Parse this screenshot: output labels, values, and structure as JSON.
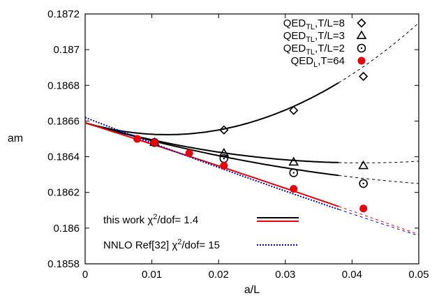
{
  "chart_data": {
    "type": "scatter",
    "xlabel": "a/L",
    "ylabel": "am",
    "xlim": [
      0,
      0.05
    ],
    "ylim": [
      0.1858,
      0.1872
    ],
    "x_ticks": [
      "0",
      "0.01",
      "0.02",
      "0.03",
      "0.04",
      "0.05"
    ],
    "y_ticks": [
      "0.1858",
      "0.186",
      "0.1862",
      "0.1864",
      "0.1866",
      "0.1868",
      "0.187",
      "0.1872"
    ],
    "grid": false,
    "legend_position": "top-right",
    "series": [
      {
        "name": "QED_TL,T/L=8",
        "label_main": "QED",
        "label_sub": "TL",
        "label_rest": ",T/L=8",
        "marker": "diamond",
        "color": "#000000",
        "x": [
          0.0104,
          0.0208,
          0.03125,
          0.0417
        ],
        "y": [
          0.18648,
          0.18655,
          0.18666,
          0.18685
        ]
      },
      {
        "name": "QED_TL,T/L=3",
        "label_main": "QED",
        "label_sub": "TL",
        "label_rest": ",T/L=3",
        "marker": "triangle",
        "color": "#000000",
        "x": [
          0.0104,
          0.0208,
          0.03125,
          0.0417
        ],
        "y": [
          0.18648,
          0.18642,
          0.18637,
          0.18635
        ]
      },
      {
        "name": "QED_TL,T/L=2",
        "label_main": "QED",
        "label_sub": "TL",
        "label_rest": ",T/L=2",
        "marker": "circle-dot",
        "color": "#000000",
        "x": [
          0.0104,
          0.0208,
          0.03125,
          0.0417
        ],
        "y": [
          0.18648,
          0.18639,
          0.18631,
          0.18625
        ]
      },
      {
        "name": "QED_L,T=64",
        "label_main": "QED",
        "label_sub": "L",
        "label_rest": ",T=64",
        "marker": "filled-circle",
        "color": "#e8000b",
        "x": [
          0.0078,
          0.0104,
          0.0156,
          0.0208,
          0.03125,
          0.0417
        ],
        "y": [
          0.1865,
          0.18648,
          0.18642,
          0.18635,
          0.18622,
          0.18611
        ]
      }
    ],
    "fits": [
      {
        "id": "fit-t8",
        "color": "#000000",
        "coef": [
          0.18659,
          -0.0108,
          0.44
        ],
        "solid_to": 0.038,
        "dashed_to": 0.05
      },
      {
        "id": "fit-t3",
        "color": "#000000",
        "coef": [
          0.18659,
          -0.0108,
          0.13
        ],
        "solid_to": 0.038,
        "dashed_to": 0.05
      },
      {
        "id": "fit-t2",
        "color": "#000000",
        "coef": [
          0.18659,
          -0.0108,
          0.08
        ],
        "solid_to": 0.038,
        "dashed_to": 0.05
      },
      {
        "id": "fit-l",
        "color": "#e8000b",
        "coef": [
          0.18659,
          -0.0118,
          -0.014
        ],
        "solid_to": 0.038,
        "dashed_to": 0.05
      },
      {
        "id": "fit-nnlo",
        "color": "#0000cc",
        "coef": [
          0.18662,
          -0.0145,
          0.025
        ],
        "solid_to": 0.038,
        "dashed_to": 0.05,
        "style": "dotted"
      }
    ],
    "fit_legend": [
      {
        "label_pre": "this work ",
        "chi": "χ",
        "sup": "2",
        "label_post": "/dof= 1.4",
        "colors": [
          "#000000",
          "#e8000b"
        ]
      },
      {
        "label_pre": "NNLO Ref[32] ",
        "chi": "χ",
        "sup": "2",
        "label_post": "/dof= 15",
        "colors": [
          "#0000cc"
        ]
      }
    ]
  }
}
